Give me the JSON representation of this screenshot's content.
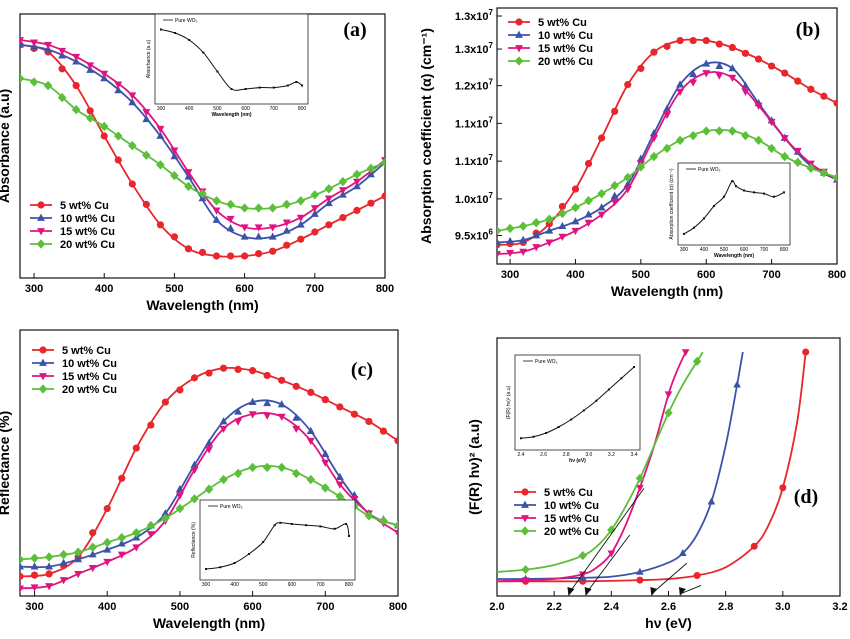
{
  "colors": {
    "cu5": "#e8262b",
    "cu10": "#3b53a8",
    "cu15": "#e0147f",
    "cu20": "#5cbf3a",
    "inset": "#111111"
  },
  "legend": [
    "5 wt% Cu",
    "10 wt% Cu",
    "15 wt% Cu",
    "20 wt% Cu"
  ],
  "chart_data": [
    {
      "type": "line",
      "panel": "(a)",
      "xlabel": "Wavelength (nm)",
      "ylabel": "Absorbance (a.u)",
      "xlim": [
        280,
        800
      ],
      "ylim": [
        0,
        1
      ],
      "xticks": [
        "300",
        "400",
        "500",
        "600",
        "700",
        "800"
      ],
      "yticks": [],
      "legend_placement": "bottom-left",
      "series": [
        {
          "name": "5 wt% Cu",
          "x": [
            280,
            320,
            360,
            400,
            440,
            480,
            520,
            560,
            600,
            640,
            680,
            720,
            760,
            800
          ],
          "y": [
            0.93,
            0.9,
            0.76,
            0.55,
            0.35,
            0.18,
            0.08,
            0.05,
            0.05,
            0.07,
            0.12,
            0.18,
            0.24,
            0.3
          ]
        },
        {
          "name": "10 wt% Cu",
          "x": [
            280,
            320,
            360,
            400,
            440,
            480,
            520,
            560,
            600,
            640,
            680,
            720,
            760,
            800
          ],
          "y": [
            0.93,
            0.91,
            0.86,
            0.79,
            0.69,
            0.55,
            0.38,
            0.2,
            0.13,
            0.13,
            0.18,
            0.27,
            0.34,
            0.44
          ]
        },
        {
          "name": "15 wt% Cu",
          "x": [
            280,
            320,
            360,
            400,
            440,
            480,
            520,
            560,
            600,
            640,
            680,
            720,
            760,
            800
          ],
          "y": [
            0.95,
            0.93,
            0.88,
            0.81,
            0.72,
            0.58,
            0.4,
            0.24,
            0.17,
            0.17,
            0.21,
            0.29,
            0.36,
            0.45
          ]
        },
        {
          "name": "20 wt% Cu",
          "x": [
            280,
            320,
            360,
            400,
            440,
            480,
            520,
            560,
            600,
            640,
            680,
            720,
            760,
            800
          ],
          "y": [
            0.79,
            0.76,
            0.66,
            0.59,
            0.51,
            0.43,
            0.34,
            0.28,
            0.25,
            0.25,
            0.28,
            0.33,
            0.39,
            0.44
          ]
        }
      ],
      "inset": {
        "legend": "Pure WO₃",
        "xlabel": "Wavelength (nm)",
        "ylabel": "Absorbance (a.u)",
        "xticks": [
          "300",
          "400",
          "500",
          "600",
          "700",
          "800"
        ],
        "x": [
          300,
          350,
          400,
          450,
          500,
          550,
          600,
          650,
          700,
          750,
          780,
          800
        ],
        "y": [
          0.95,
          0.9,
          0.8,
          0.62,
          0.35,
          0.1,
          0.1,
          0.12,
          0.12,
          0.15,
          0.2,
          0.15
        ]
      }
    },
    {
      "type": "line",
      "panel": "(b)",
      "xlabel": "Wavelength (nm)",
      "ylabel": "Absorption coefficient (α) (cm⁻¹)",
      "xlim": [
        280,
        800
      ],
      "ylim": [
        0,
        1
      ],
      "xticks": [
        "300",
        "400",
        "500",
        "600",
        "700",
        "800"
      ],
      "yticks": [
        {
          "base": "9.5x10",
          "exp": "6",
          "v": 0.07
        },
        {
          "base": "1.0x10",
          "exp": "7",
          "v": 0.225
        },
        {
          "base": "1.1x10",
          "exp": "7",
          "v": 0.385
        },
        {
          "base": "1.1x10",
          "exp": "7",
          "v": 0.545
        },
        {
          "base": "1.2x10",
          "exp": "7",
          "v": 0.705
        },
        {
          "base": "1.3x10",
          "exp": "7",
          "v": 0.86
        },
        {
          "base": "1.3x10",
          "exp": "7",
          "v": 1.0
        }
      ],
      "legend_placement": "top-left",
      "series": [
        {
          "name": "5 wt% Cu",
          "x": [
            280,
            320,
            360,
            400,
            440,
            480,
            520,
            560,
            600,
            640,
            680,
            720,
            760,
            800
          ],
          "y": [
            0.04,
            0.05,
            0.13,
            0.28,
            0.5,
            0.73,
            0.87,
            0.92,
            0.92,
            0.89,
            0.84,
            0.78,
            0.71,
            0.65
          ]
        },
        {
          "name": "10 wt% Cu",
          "x": [
            280,
            320,
            360,
            400,
            440,
            480,
            520,
            560,
            600,
            640,
            680,
            720,
            760,
            800
          ],
          "y": [
            0.05,
            0.06,
            0.1,
            0.14,
            0.2,
            0.3,
            0.52,
            0.73,
            0.82,
            0.8,
            0.65,
            0.5,
            0.38,
            0.32
          ]
        },
        {
          "name": "15 wt% Cu",
          "x": [
            280,
            320,
            360,
            400,
            440,
            480,
            520,
            560,
            600,
            640,
            680,
            720,
            760,
            800
          ],
          "y": [
            0.0,
            0.01,
            0.05,
            0.1,
            0.17,
            0.28,
            0.5,
            0.7,
            0.78,
            0.76,
            0.64,
            0.5,
            0.39,
            0.32
          ]
        },
        {
          "name": "20 wt% Cu",
          "x": [
            280,
            320,
            360,
            400,
            440,
            480,
            520,
            560,
            600,
            640,
            680,
            720,
            760,
            800
          ],
          "y": [
            0.1,
            0.12,
            0.15,
            0.2,
            0.26,
            0.33,
            0.42,
            0.49,
            0.53,
            0.53,
            0.49,
            0.42,
            0.37,
            0.33
          ]
        }
      ],
      "inset": {
        "legend": "Pure WO₃",
        "xlabel": "Wavelength (nm)",
        "ylabel": "Absorption coefficient (α) (cm⁻¹)",
        "xticks": [
          "300",
          "400",
          "500",
          "600",
          "700",
          "800"
        ],
        "x": [
          300,
          350,
          400,
          450,
          500,
          540,
          560,
          600,
          650,
          700,
          750,
          800
        ],
        "y": [
          0.05,
          0.15,
          0.3,
          0.5,
          0.65,
          0.9,
          0.82,
          0.75,
          0.72,
          0.7,
          0.65,
          0.72
        ]
      }
    },
    {
      "type": "line",
      "panel": "(c)",
      "xlabel": "Wavelength (nm)",
      "ylabel": "Reflectance (%)",
      "xlim": [
        280,
        800
      ],
      "ylim": [
        0,
        1
      ],
      "xticks": [
        "300",
        "400",
        "500",
        "600",
        "700",
        "800"
      ],
      "yticks": [],
      "legend_placement": "top-left",
      "series": [
        {
          "name": "5 wt% Cu",
          "x": [
            280,
            320,
            360,
            400,
            440,
            480,
            520,
            560,
            600,
            640,
            680,
            720,
            760,
            800
          ],
          "y": [
            0.04,
            0.05,
            0.12,
            0.32,
            0.57,
            0.76,
            0.86,
            0.9,
            0.89,
            0.85,
            0.8,
            0.74,
            0.68,
            0.6
          ]
        },
        {
          "name": "10 wt% Cu",
          "x": [
            280,
            320,
            360,
            400,
            440,
            480,
            520,
            560,
            600,
            640,
            680,
            720,
            760,
            800
          ],
          "y": [
            0.08,
            0.08,
            0.11,
            0.15,
            0.2,
            0.3,
            0.5,
            0.68,
            0.76,
            0.75,
            0.64,
            0.45,
            0.3,
            0.25
          ]
        },
        {
          "name": "15 wt% Cu",
          "x": [
            280,
            320,
            360,
            400,
            440,
            480,
            520,
            560,
            600,
            640,
            680,
            720,
            760,
            800
          ],
          "y": [
            -0.01,
            0.0,
            0.05,
            0.1,
            0.16,
            0.27,
            0.48,
            0.65,
            0.71,
            0.7,
            0.6,
            0.42,
            0.3,
            0.22
          ]
        },
        {
          "name": "20 wt% Cu",
          "x": [
            280,
            320,
            360,
            400,
            440,
            480,
            520,
            560,
            600,
            640,
            680,
            720,
            760,
            800
          ],
          "y": [
            0.11,
            0.12,
            0.14,
            0.18,
            0.22,
            0.28,
            0.36,
            0.44,
            0.49,
            0.49,
            0.44,
            0.37,
            0.29,
            0.25
          ]
        }
      ],
      "inset": {
        "legend": "Pure WO₃",
        "xlabel": "",
        "ylabel": "Reflectance (%)",
        "xticks": [
          "300",
          "400",
          "500",
          "600",
          "700",
          "800"
        ],
        "x": [
          300,
          350,
          400,
          450,
          500,
          540,
          560,
          600,
          650,
          700,
          750,
          790,
          800
        ],
        "y": [
          0.05,
          0.08,
          0.15,
          0.3,
          0.5,
          0.78,
          0.82,
          0.8,
          0.78,
          0.76,
          0.72,
          0.8,
          0.6
        ]
      }
    },
    {
      "type": "line",
      "panel": "(d)",
      "xlabel": "hν (eV)",
      "ylabel": "(F(R) hν)² (a.u)",
      "xlim": [
        2.0,
        3.2
      ],
      "ylim": [
        0,
        1
      ],
      "xticks": [
        "2.0",
        "2.2",
        "2.4",
        "2.6",
        "2.8",
        "3.0",
        "3.2"
      ],
      "yticks": [],
      "legend_placement": "bottom-left",
      "series": [
        {
          "name": "5 wt% Cu",
          "x": [
            2.0,
            2.1,
            2.2,
            2.3,
            2.4,
            2.5,
            2.6,
            2.7,
            2.8,
            2.9,
            2.95,
            3.0,
            3.05,
            3.08
          ],
          "y": [
            0.02,
            0.02,
            0.02,
            0.02,
            0.022,
            0.025,
            0.03,
            0.045,
            0.08,
            0.17,
            0.26,
            0.42,
            0.7,
            1.0
          ]
        },
        {
          "name": "10 wt% Cu",
          "x": [
            2.0,
            2.1,
            2.2,
            2.3,
            2.4,
            2.5,
            2.6,
            2.65,
            2.7,
            2.75,
            2.8,
            2.84,
            2.86
          ],
          "y": [
            0.03,
            0.03,
            0.032,
            0.035,
            0.04,
            0.06,
            0.1,
            0.14,
            0.22,
            0.36,
            0.6,
            0.86,
            1.0
          ]
        },
        {
          "name": "15 wt% Cu",
          "x": [
            2.0,
            2.1,
            2.2,
            2.3,
            2.35,
            2.4,
            2.45,
            2.5,
            2.55,
            2.6,
            2.63,
            2.66
          ],
          "y": [
            0.02,
            0.025,
            0.03,
            0.05,
            0.08,
            0.14,
            0.26,
            0.42,
            0.6,
            0.82,
            0.92,
            1.0
          ]
        },
        {
          "name": "20 wt% Cu",
          "x": [
            2.0,
            2.1,
            2.2,
            2.3,
            2.35,
            2.4,
            2.45,
            2.5,
            2.55,
            2.6,
            2.65,
            2.7,
            2.72
          ],
          "y": [
            0.06,
            0.07,
            0.09,
            0.13,
            0.17,
            0.24,
            0.34,
            0.46,
            0.6,
            0.74,
            0.86,
            0.96,
            1.0
          ]
        }
      ],
      "extrapolation_intercepts": [
        2.25,
        2.31,
        2.54,
        2.64
      ],
      "inset": {
        "legend": "Pure WO₃",
        "xlabel": "hν (eV)",
        "ylabel": "(F(R) hν)² (a.u)",
        "xticks": [
          "2.4",
          "2.6",
          "2.8",
          "3.0",
          "3.2",
          "3.4"
        ],
        "x": [
          2.4,
          2.5,
          2.6,
          2.7,
          2.8,
          2.9,
          3.0,
          3.1,
          3.2,
          3.3
        ],
        "y": [
          0.05,
          0.07,
          0.12,
          0.2,
          0.3,
          0.42,
          0.55,
          0.7,
          0.85,
          1.0
        ]
      }
    }
  ]
}
